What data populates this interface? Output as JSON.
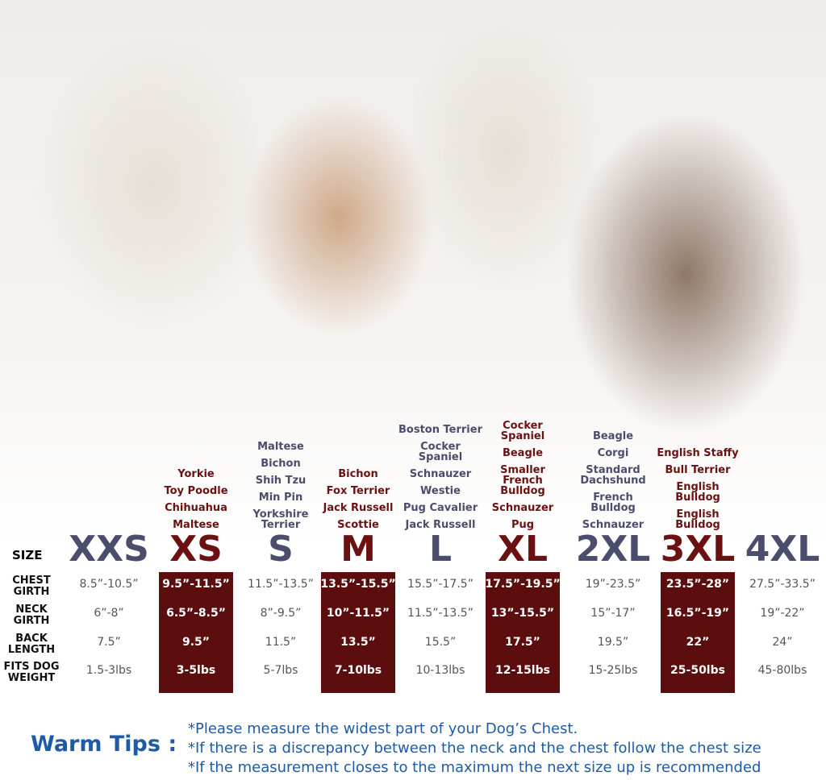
{
  "header": {
    "size_label": "SIZE"
  },
  "row_labels": [
    [
      "CHEST",
      "GIRTH"
    ],
    [
      "NECK",
      "GIRTH"
    ],
    [
      "BACK",
      "LENGTH"
    ],
    [
      "FITS DOG",
      "WEIGHT"
    ]
  ],
  "sizes": [
    {
      "name": "XXS",
      "highlight": false,
      "breeds": [],
      "measurements": [
        "8.5”-10.5”",
        "6”-8”",
        "7.5”",
        "1.5-3lbs"
      ]
    },
    {
      "name": "XS",
      "highlight": true,
      "breeds": [
        "Yorkie",
        "Toy Poodle",
        "Chihuahua",
        "Maltese"
      ],
      "measurements": [
        "9.5”-11.5”",
        "6.5”-8.5”",
        "9.5”",
        "3-5lbs"
      ]
    },
    {
      "name": "S",
      "highlight": false,
      "breeds": [
        "Maltese",
        "Bichon",
        "Shih Tzu",
        "Min Pin",
        "Yorkshire Terrier"
      ],
      "measurements": [
        "11.5”-13.5”",
        "8”-9.5”",
        "11.5”",
        "5-7lbs"
      ]
    },
    {
      "name": "M",
      "highlight": true,
      "breeds": [
        "Bichon",
        "Fox Terrier",
        "Jack Russell",
        "Scottie"
      ],
      "measurements": [
        "13.5”-15.5”",
        "10”-11.5”",
        "13.5”",
        "7-10lbs"
      ]
    },
    {
      "name": "L",
      "highlight": false,
      "breeds": [
        "Boston Terrier",
        "Cocker Spaniel",
        "Schnauzer",
        "Westie",
        "Pug Cavalier",
        "Jack Russell"
      ],
      "measurements": [
        "15.5”-17.5”",
        "11.5”-13.5”",
        "15.5”",
        "10-13lbs"
      ]
    },
    {
      "name": "XL",
      "highlight": true,
      "breeds": [
        "Cocker Spaniel",
        "Beagle",
        "Smaller French Bulldog",
        "Schnauzer",
        "Pug"
      ],
      "measurements": [
        "17.5”-19.5”",
        "13”-15.5”",
        "17.5”",
        "12-15lbs"
      ]
    },
    {
      "name": "2XL",
      "highlight": false,
      "breeds": [
        "Beagle",
        "Corgi",
        "Standard Dachshund",
        "French Bulldog",
        "Schnauzer"
      ],
      "measurements": [
        "19”-23.5”",
        "15”-17”",
        "19.5”",
        "15-25lbs"
      ]
    },
    {
      "name": "3XL",
      "highlight": true,
      "breeds": [
        "English Staffy",
        "Bull Terrier",
        "English Bulldog",
        "English Bulldog"
      ],
      "measurements": [
        "23.5”-28”",
        "16.5”-19”",
        "22”",
        "25-50lbs"
      ]
    },
    {
      "name": "4XL",
      "highlight": false,
      "breeds": [],
      "measurements": [
        "27.5”-33.5”",
        "19”-22”",
        "24”",
        "45-80lbs"
      ]
    }
  ],
  "tips": {
    "title": "Warm Tips :",
    "lines": [
      "*Please measure the widest part of your Dog’s Chest.",
      "*If there is a discrepancy between the neck and the chest  follow the chest size",
      "*If the measurement closes to the maximum the next size up is recommended"
    ]
  }
}
